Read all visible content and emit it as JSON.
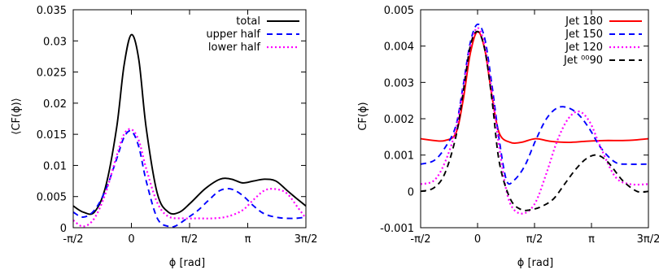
{
  "chart_data": [
    {
      "type": "line",
      "xlabel": "ϕ [rad]",
      "ylabel": "⟨CF(ϕ)⟩",
      "xlim": [
        -1.5708,
        4.7124
      ],
      "ylim": [
        0,
        0.035
      ],
      "x_ticks": [
        {
          "value": -1.5708,
          "label": "-π/2"
        },
        {
          "value": 0,
          "label": "0"
        },
        {
          "value": 1.5708,
          "label": "π/2"
        },
        {
          "value": 3.1416,
          "label": "π"
        },
        {
          "value": 4.7124,
          "label": "3π/2"
        }
      ],
      "y_ticks": [
        {
          "value": 0,
          "label": "0"
        },
        {
          "value": 0.005,
          "label": "0.005"
        },
        {
          "value": 0.01,
          "label": "0.01"
        },
        {
          "value": 0.015,
          "label": "0.015"
        },
        {
          "value": 0.02,
          "label": "0.02"
        },
        {
          "value": 0.025,
          "label": "0.025"
        },
        {
          "value": 0.03,
          "label": "0.03"
        },
        {
          "value": 0.035,
          "label": "0.035"
        }
      ],
      "grid": false,
      "legend_position": "top-right",
      "series": [
        {
          "name": "total",
          "color": "#000000",
          "dash": "solid",
          "x": [
            -1.5708,
            -1.3,
            -1.0,
            -0.7,
            -0.4,
            -0.2,
            0,
            0.2,
            0.4,
            0.7,
            1.0,
            1.3,
            1.6,
            2.0,
            2.4,
            2.7,
            3.0,
            3.3,
            3.6,
            3.9,
            4.2,
            4.5,
            4.7124
          ],
          "y": [
            0.0035,
            0.0025,
            0.0025,
            0.0065,
            0.016,
            0.026,
            0.031,
            0.027,
            0.016,
            0.0055,
            0.0025,
            0.0025,
            0.004,
            0.0063,
            0.0078,
            0.0078,
            0.0072,
            0.0075,
            0.0078,
            0.0075,
            0.006,
            0.0045,
            0.0035
          ]
        },
        {
          "name": "upper half",
          "color": "#0000ff",
          "dash": "dashed",
          "x": [
            -1.5708,
            -1.3,
            -1.0,
            -0.7,
            -0.4,
            -0.2,
            0,
            0.2,
            0.4,
            0.7,
            1.0,
            1.2,
            1.5,
            1.8,
            2.1,
            2.4,
            2.7,
            3.0,
            3.3,
            3.6,
            4.0,
            4.4,
            4.7124
          ],
          "y": [
            0.0025,
            0.0017,
            0.0028,
            0.006,
            0.011,
            0.0145,
            0.0155,
            0.013,
            0.0075,
            0.0015,
            0.0002,
            0.0003,
            0.0015,
            0.0028,
            0.0045,
            0.006,
            0.0062,
            0.0052,
            0.0035,
            0.0022,
            0.0016,
            0.0015,
            0.0017
          ]
        },
        {
          "name": "lower half",
          "color": "#ff00ff",
          "dash": "dotted",
          "x": [
            -1.5708,
            -1.3,
            -1.0,
            -0.7,
            -0.4,
            -0.2,
            0,
            0.2,
            0.4,
            0.7,
            1.0,
            1.4,
            1.8,
            2.2,
            2.6,
            3.0,
            3.3,
            3.6,
            3.9,
            4.2,
            4.5,
            4.7124
          ],
          "y": [
            0.0012,
            0.0002,
            0.0015,
            0.0055,
            0.0115,
            0.015,
            0.0158,
            0.014,
            0.0095,
            0.004,
            0.0018,
            0.0015,
            0.0015,
            0.0015,
            0.0018,
            0.0028,
            0.0045,
            0.006,
            0.0062,
            0.0055,
            0.0032,
            0.0015
          ]
        }
      ]
    },
    {
      "type": "line",
      "xlabel": "ϕ [rad]",
      "ylabel": "CF(ϕ)",
      "xlim": [
        -1.5708,
        4.7124
      ],
      "ylim": [
        -0.001,
        0.005
      ],
      "x_ticks": [
        {
          "value": -1.5708,
          "label": "-π/2"
        },
        {
          "value": 0,
          "label": "0"
        },
        {
          "value": 1.5708,
          "label": "π/2"
        },
        {
          "value": 3.1416,
          "label": "π"
        },
        {
          "value": 4.7124,
          "label": "3π/2"
        }
      ],
      "y_ticks": [
        {
          "value": -0.001,
          "label": "-0.001"
        },
        {
          "value": 0,
          "label": "0"
        },
        {
          "value": 0.001,
          "label": "0.001"
        },
        {
          "value": 0.002,
          "label": "0.002"
        },
        {
          "value": 0.003,
          "label": "0.003"
        },
        {
          "value": 0.004,
          "label": "0.004"
        },
        {
          "value": 0.005,
          "label": "0.005"
        }
      ],
      "grid": false,
      "legend_position": "top-right",
      "series": [
        {
          "name": "Jet 180",
          "color": "#ff0000",
          "dash": "solid",
          "x": [
            -1.5708,
            -1.2,
            -0.9,
            -0.6,
            -0.4,
            -0.2,
            0,
            0.2,
            0.4,
            0.6,
            0.9,
            1.2,
            1.6,
            2.0,
            2.5,
            3.0,
            3.5,
            4.0,
            4.4,
            4.7124
          ],
          "y": [
            0.00145,
            0.0014,
            0.0014,
            0.0016,
            0.0025,
            0.0038,
            0.0044,
            0.0039,
            0.0026,
            0.0016,
            0.00135,
            0.00135,
            0.00145,
            0.00138,
            0.00135,
            0.00138,
            0.0014,
            0.0014,
            0.00142,
            0.00145
          ]
        },
        {
          "name": "Jet 150",
          "color": "#0000ff",
          "dash": "dashed",
          "x": [
            -1.5708,
            -1.2,
            -0.9,
            -0.6,
            -0.4,
            -0.2,
            0,
            0.2,
            0.4,
            0.6,
            0.8,
            1.0,
            1.3,
            1.6,
            1.9,
            2.2,
            2.5,
            2.8,
            3.1,
            3.4,
            3.8,
            4.2,
            4.7124
          ],
          "y": [
            0.00075,
            0.00085,
            0.0012,
            0.0018,
            0.0029,
            0.0041,
            0.0046,
            0.0042,
            0.0029,
            0.0014,
            0.0003,
            0.0003,
            0.0007,
            0.0014,
            0.002,
            0.0023,
            0.0023,
            0.0021,
            0.0017,
            0.0012,
            0.0008,
            0.00075,
            0.00075
          ]
        },
        {
          "name": "Jet 120",
          "color": "#ff00ff",
          "dash": "dotted",
          "x": [
            -1.5708,
            -1.2,
            -0.9,
            -0.6,
            -0.4,
            -0.2,
            0,
            0.2,
            0.4,
            0.6,
            0.8,
            1.0,
            1.3,
            1.6,
            1.9,
            2.2,
            2.5,
            2.8,
            3.1,
            3.4,
            3.8,
            4.2,
            4.7124
          ],
          "y": [
            0.0002,
            0.0003,
            0.0008,
            0.0017,
            0.0028,
            0.004,
            0.0045,
            0.004,
            0.0027,
            0.0012,
            0.0,
            -0.0005,
            -0.0006,
            -0.0003,
            0.0005,
            0.0014,
            0.002,
            0.0022,
            0.0019,
            0.0012,
            0.0004,
            0.0002,
            0.0002
          ]
        },
        {
          "name": "Jet ⁰⁰90",
          "color": "#000000",
          "dash": "dashed",
          "x": [
            -1.5708,
            -1.2,
            -0.9,
            -0.6,
            -0.4,
            -0.2,
            0,
            0.2,
            0.4,
            0.6,
            0.9,
            1.2,
            1.5,
            1.8,
            2.1,
            2.4,
            2.7,
            3.0,
            3.3,
            3.6,
            4.0,
            4.4,
            4.7124
          ],
          "y": [
            0.0,
            0.0001,
            0.0005,
            0.0015,
            0.0027,
            0.004,
            0.0044,
            0.0039,
            0.0025,
            0.0008,
            -0.0002,
            -0.0005,
            -0.0005,
            -0.0004,
            -0.0002,
            0.0002,
            0.0006,
            0.0009,
            0.001,
            0.0008,
            0.0003,
            0.0,
            0.0
          ]
        }
      ]
    }
  ]
}
